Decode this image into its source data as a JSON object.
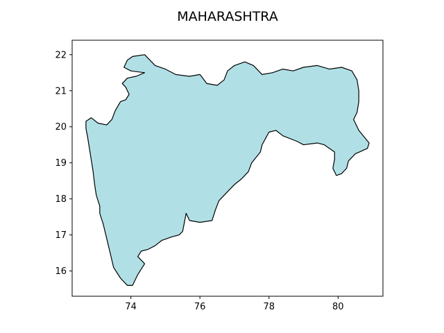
{
  "title": "MAHARASHTRA",
  "map": {
    "region_name": "MAHARASHTRA",
    "fill_color": "#b0e0e6",
    "edge_color": "#000000",
    "axis_type": "longitude-latitude",
    "xlim": [
      72.3,
      81.3
    ],
    "ylim": [
      15.3,
      22.4
    ],
    "xticks": [
      74,
      76,
      78,
      80
    ],
    "yticks": [
      16,
      17,
      18,
      19,
      20,
      21,
      22
    ],
    "xtick_labels": [
      "74",
      "76",
      "78",
      "80"
    ],
    "ytick_labels": [
      "16",
      "17",
      "18",
      "19",
      "20",
      "21",
      "22"
    ],
    "outline_lonlat": [
      [
        72.7,
        20.15
      ],
      [
        72.85,
        20.25
      ],
      [
        73.05,
        20.1
      ],
      [
        73.3,
        20.05
      ],
      [
        73.45,
        20.2
      ],
      [
        73.55,
        20.45
      ],
      [
        73.7,
        20.7
      ],
      [
        73.85,
        20.75
      ],
      [
        73.95,
        20.9
      ],
      [
        73.85,
        21.1
      ],
      [
        73.75,
        21.2
      ],
      [
        73.9,
        21.35
      ],
      [
        74.15,
        21.4
      ],
      [
        74.4,
        21.5
      ],
      [
        74.0,
        21.55
      ],
      [
        73.8,
        21.65
      ],
      [
        73.9,
        21.85
      ],
      [
        74.05,
        21.95
      ],
      [
        74.4,
        22.0
      ],
      [
        74.55,
        21.85
      ],
      [
        74.7,
        21.7
      ],
      [
        75.0,
        21.6
      ],
      [
        75.3,
        21.45
      ],
      [
        75.7,
        21.4
      ],
      [
        76.0,
        21.45
      ],
      [
        76.2,
        21.2
      ],
      [
        76.5,
        21.15
      ],
      [
        76.7,
        21.3
      ],
      [
        76.8,
        21.55
      ],
      [
        77.0,
        21.7
      ],
      [
        77.3,
        21.8
      ],
      [
        77.55,
        21.7
      ],
      [
        77.8,
        21.45
      ],
      [
        78.1,
        21.5
      ],
      [
        78.4,
        21.6
      ],
      [
        78.7,
        21.55
      ],
      [
        79.0,
        21.65
      ],
      [
        79.4,
        21.7
      ],
      [
        79.75,
        21.6
      ],
      [
        80.1,
        21.65
      ],
      [
        80.4,
        21.55
      ],
      [
        80.55,
        21.3
      ],
      [
        80.6,
        21.0
      ],
      [
        80.6,
        20.7
      ],
      [
        80.55,
        20.4
      ],
      [
        80.45,
        20.2
      ],
      [
        80.6,
        19.9
      ],
      [
        80.9,
        19.55
      ],
      [
        80.85,
        19.4
      ],
      [
        80.5,
        19.25
      ],
      [
        80.3,
        19.05
      ],
      [
        80.25,
        18.85
      ],
      [
        80.1,
        18.7
      ],
      [
        79.95,
        18.65
      ],
      [
        79.85,
        18.85
      ],
      [
        79.9,
        19.1
      ],
      [
        79.9,
        19.3
      ],
      [
        79.6,
        19.5
      ],
      [
        79.4,
        19.55
      ],
      [
        79.0,
        19.5
      ],
      [
        78.8,
        19.6
      ],
      [
        78.4,
        19.75
      ],
      [
        78.2,
        19.9
      ],
      [
        78.0,
        19.85
      ],
      [
        77.8,
        19.5
      ],
      [
        77.75,
        19.3
      ],
      [
        77.5,
        19.0
      ],
      [
        77.4,
        18.75
      ],
      [
        77.2,
        18.55
      ],
      [
        77.0,
        18.4
      ],
      [
        76.8,
        18.2
      ],
      [
        76.55,
        17.95
      ],
      [
        76.45,
        17.7
      ],
      [
        76.35,
        17.4
      ],
      [
        76.0,
        17.35
      ],
      [
        75.7,
        17.4
      ],
      [
        75.6,
        17.6
      ],
      [
        75.5,
        17.1
      ],
      [
        75.4,
        17.0
      ],
      [
        75.2,
        16.95
      ],
      [
        74.9,
        16.85
      ],
      [
        74.7,
        16.7
      ],
      [
        74.5,
        16.6
      ],
      [
        74.3,
        16.55
      ],
      [
        74.2,
        16.4
      ],
      [
        74.4,
        16.2
      ],
      [
        74.2,
        15.9
      ],
      [
        74.05,
        15.6
      ],
      [
        73.9,
        15.6
      ],
      [
        73.7,
        15.8
      ],
      [
        73.5,
        16.1
      ],
      [
        73.4,
        16.5
      ],
      [
        73.3,
        16.9
      ],
      [
        73.2,
        17.3
      ],
      [
        73.1,
        17.6
      ],
      [
        73.1,
        17.8
      ],
      [
        73.0,
        18.1
      ],
      [
        72.95,
        18.4
      ],
      [
        72.9,
        18.8
      ],
      [
        72.85,
        19.1
      ],
      [
        72.8,
        19.4
      ],
      [
        72.75,
        19.7
      ],
      [
        72.7,
        19.95
      ]
    ]
  }
}
